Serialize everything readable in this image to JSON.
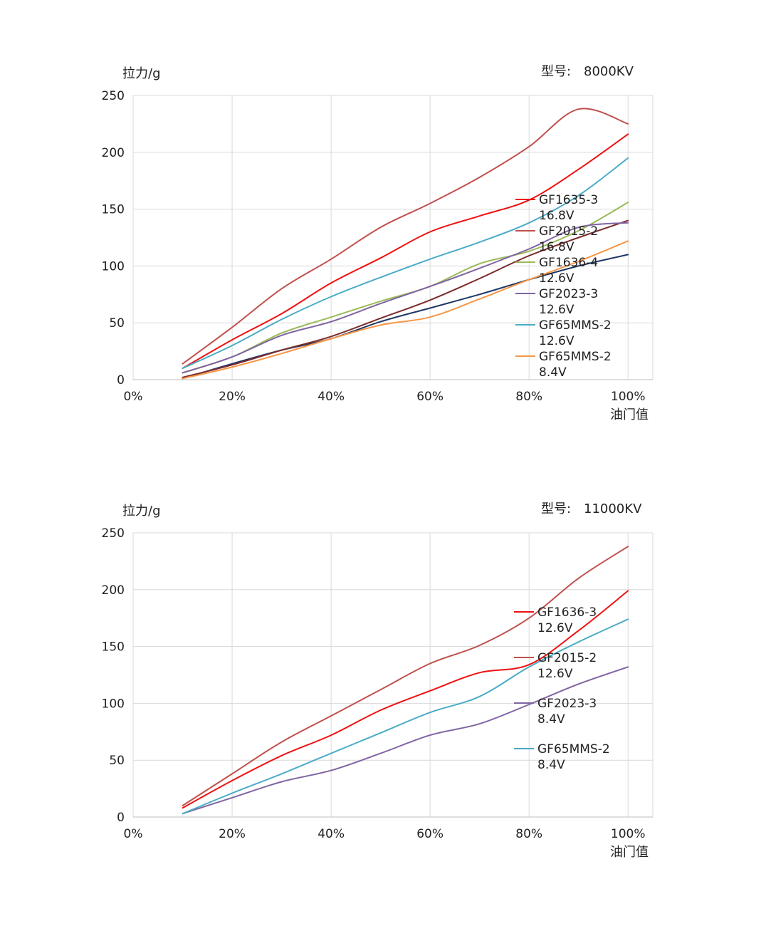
{
  "chart_data": [
    {
      "type": "line",
      "ylabel": "拉力/g",
      "xlabel": "油门值",
      "model_label": "型号:",
      "model_value": "8000KV",
      "x": [
        10,
        20,
        30,
        40,
        50,
        60,
        70,
        80,
        90,
        100
      ],
      "xlim": [
        0,
        100
      ],
      "ylim": [
        0,
        250
      ],
      "x_ticks": [
        "0%",
        "20%",
        "40%",
        "60%",
        "80%",
        "100%"
      ],
      "y_ticks": [
        "0",
        "50",
        "100",
        "150",
        "200",
        "250"
      ],
      "grid": true,
      "legend_position": "right",
      "series": [
        {
          "name": "GF1635-3",
          "name2": "16.8V",
          "color": "#ee1111",
          "values": [
            10,
            35,
            58,
            85,
            107,
            130,
            144,
            158,
            185,
            216
          ]
        },
        {
          "name": "GF2015-2",
          "name2": "16.8V",
          "color": "#c0504d",
          "values": [
            14,
            46,
            80,
            106,
            134,
            155,
            178,
            205,
            238,
            225
          ]
        },
        {
          "name": "GF1636-4",
          "name2": "12.6V",
          "color": "#9bbb59",
          "values": [
            6,
            20,
            41,
            55,
            69,
            82,
            102,
            113,
            131,
            156
          ]
        },
        {
          "name": "GF2023-3",
          "name2": "12.6V",
          "color": "#8064a2",
          "values": [
            6,
            20,
            39,
            51,
            67,
            82,
            98,
            115,
            134,
            138
          ]
        },
        {
          "name": "GF65MMS-2",
          "name2": "12.6V",
          "color": "#4bacc6",
          "values": [
            10,
            30,
            53,
            73,
            90,
            106,
            121,
            138,
            162,
            195
          ]
        },
        {
          "name": "GF65MMS-2",
          "name2": "8.4V",
          "color": "#f79646",
          "values": [
            1,
            11,
            23,
            36,
            48,
            55,
            71,
            88,
            104,
            122
          ]
        }
      ],
      "unlabeled_series": [
        {
          "color": "#1f3864",
          "values": [
            1,
            14,
            26,
            36,
            51,
            63,
            75,
            88,
            100,
            110
          ]
        },
        {
          "color": "#7b2c2c",
          "values": [
            2,
            13,
            26,
            38,
            54,
            70,
            89,
            109,
            125,
            140
          ]
        }
      ]
    },
    {
      "type": "line",
      "ylabel": "拉力/g",
      "xlabel": "油门值",
      "model_label": "型号:",
      "model_value": "11000KV",
      "x": [
        10,
        20,
        30,
        40,
        50,
        60,
        70,
        80,
        90,
        100
      ],
      "xlim": [
        0,
        100
      ],
      "ylim": [
        0,
        250
      ],
      "x_ticks": [
        "0%",
        "20%",
        "40%",
        "60%",
        "80%",
        "100%"
      ],
      "y_ticks": [
        "0",
        "50",
        "100",
        "150",
        "200",
        "250"
      ],
      "grid": true,
      "legend_position": "right",
      "series": [
        {
          "name": "GF1636-3",
          "name2": "12.6V",
          "color": "#ee1111",
          "values": [
            8,
            32,
            54,
            72,
            94,
            111,
            127,
            134,
            164,
            199
          ]
        },
        {
          "name": "GF2015-2",
          "name2": "12.6V",
          "color": "#c0504d",
          "values": [
            10,
            38,
            66,
            89,
            112,
            135,
            151,
            175,
            210,
            238
          ]
        },
        {
          "name": "GF2023-3",
          "name2": "8.4V",
          "color": "#8064a2",
          "values": [
            3,
            17,
            31,
            41,
            56,
            72,
            82,
            99,
            117,
            132
          ]
        },
        {
          "name": "GF65MMS-2",
          "name2": "8.4V",
          "color": "#4bacc6",
          "values": [
            3,
            21,
            38,
            56,
            74,
            92,
            106,
            132,
            154,
            174
          ]
        }
      ],
      "unlabeled_series": []
    }
  ]
}
